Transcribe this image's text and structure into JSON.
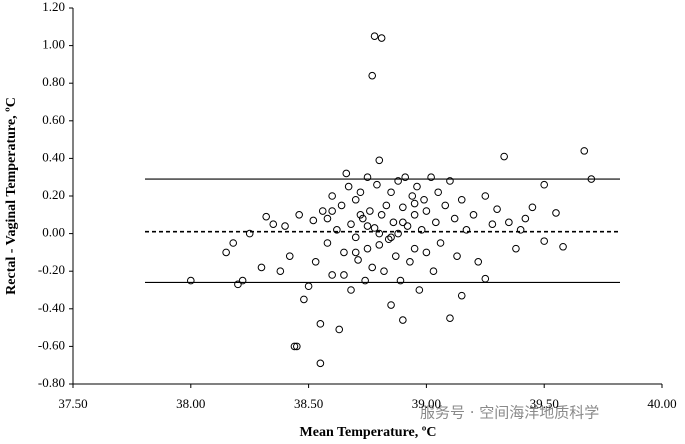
{
  "chart_data": {
    "type": "scatter",
    "xlabel": "Mean Temperature, ºC",
    "ylabel": "Rectal - Vaginal Temperature, ºC",
    "watermark": "服务号 · 空间海洋地质科学",
    "color": "#000000",
    "xlim": [
      37.5,
      40.0
    ],
    "ylim": [
      -0.8,
      1.2
    ],
    "xticks": [
      {
        "value": 37.5,
        "label": "37.50"
      },
      {
        "value": 38.0,
        "label": "38.00"
      },
      {
        "value": 38.5,
        "label": "38.50"
      },
      {
        "value": 39.0,
        "label": "39.00"
      },
      {
        "value": 39.5,
        "label": "39.50"
      },
      {
        "value": 40.0,
        "label": "40.00"
      }
    ],
    "yticks": [
      {
        "value": -0.8,
        "label": "-0.80"
      },
      {
        "value": -0.6,
        "label": "-0.60"
      },
      {
        "value": -0.4,
        "label": "-0.40"
      },
      {
        "value": -0.2,
        "label": "-0.20"
      },
      {
        "value": 0,
        "label": "0.00"
      },
      {
        "value": 0.2,
        "label": "0.20"
      },
      {
        "value": 0.4,
        "label": "0.40"
      },
      {
        "value": 0.6,
        "label": "0.60"
      },
      {
        "value": 0.8,
        "label": "0.80"
      },
      {
        "value": 1.0,
        "label": "1.00"
      },
      {
        "value": 1.2,
        "label": "1.20"
      }
    ],
    "reference_lines": [
      {
        "value": 0.29,
        "style": "solid"
      },
      {
        "value": 0.01,
        "style": "dashed"
      },
      {
        "value": -0.26,
        "style": "solid"
      }
    ],
    "x": [
      38.0,
      38.15,
      38.18,
      38.2,
      38.22,
      38.25,
      38.3,
      38.32,
      38.35,
      38.38,
      38.4,
      38.42,
      38.44,
      38.45,
      38.46,
      38.48,
      38.5,
      38.52,
      38.53,
      38.55,
      38.55,
      38.56,
      38.58,
      38.6,
      38.6,
      38.62,
      38.63,
      38.64,
      38.65,
      38.66,
      38.67,
      38.68,
      38.68,
      38.7,
      38.7,
      38.71,
      38.72,
      38.73,
      38.74,
      38.75,
      38.75,
      38.76,
      38.77,
      38.77,
      38.78,
      38.78,
      38.79,
      38.8,
      38.8,
      38.81,
      38.81,
      38.82,
      38.83,
      38.84,
      38.85,
      38.85,
      38.86,
      38.87,
      38.88,
      38.88,
      38.89,
      38.9,
      38.9,
      38.91,
      38.92,
      38.93,
      38.94,
      38.95,
      38.95,
      38.96,
      38.97,
      38.98,
      38.99,
      39.0,
      39.0,
      39.02,
      39.03,
      39.04,
      39.05,
      39.06,
      39.08,
      39.1,
      39.1,
      39.12,
      39.13,
      39.15,
      39.15,
      39.17,
      39.2,
      39.22,
      39.25,
      39.25,
      39.28,
      39.3,
      39.33,
      39.35,
      39.38,
      39.4,
      39.42,
      39.45,
      39.5,
      39.5,
      39.55,
      39.58,
      39.67,
      39.7,
      38.58,
      38.65,
      38.72,
      38.9,
      38.85,
      38.95,
      38.7,
      38.8,
      38.6,
      38.75
    ],
    "values": [
      -0.25,
      -0.1,
      -0.05,
      -0.27,
      -0.25,
      0.0,
      -0.18,
      0.09,
      0.05,
      -0.2,
      0.04,
      -0.12,
      -0.6,
      -0.6,
      0.1,
      -0.35,
      -0.28,
      0.07,
      -0.15,
      -0.69,
      -0.48,
      0.12,
      -0.05,
      0.2,
      -0.22,
      0.02,
      -0.51,
      0.15,
      -0.1,
      0.32,
      0.25,
      -0.3,
      0.05,
      0.18,
      -0.02,
      -0.14,
      0.22,
      0.08,
      -0.25,
      0.3,
      -0.08,
      0.12,
      0.84,
      -0.18,
      1.05,
      0.03,
      0.26,
      0.39,
      -0.06,
      1.04,
      0.1,
      -0.2,
      0.15,
      -0.03,
      0.22,
      -0.38,
      0.06,
      -0.12,
      0.28,
      0.0,
      -0.25,
      0.14,
      -0.46,
      0.3,
      0.04,
      -0.15,
      0.2,
      -0.08,
      0.1,
      0.25,
      -0.3,
      0.02,
      0.18,
      -0.1,
      0.12,
      0.3,
      -0.2,
      0.06,
      0.22,
      -0.05,
      0.15,
      -0.45,
      0.28,
      0.08,
      -0.12,
      -0.33,
      0.18,
      0.02,
      0.1,
      -0.15,
      -0.24,
      0.2,
      0.05,
      0.13,
      0.41,
      0.06,
      -0.08,
      0.02,
      0.08,
      0.14,
      -0.04,
      0.26,
      0.11,
      -0.07,
      0.44,
      0.29,
      0.08,
      -0.22,
      0.1,
      0.06,
      -0.02,
      0.16,
      -0.1,
      0.0,
      0.12,
      0.04
    ]
  }
}
